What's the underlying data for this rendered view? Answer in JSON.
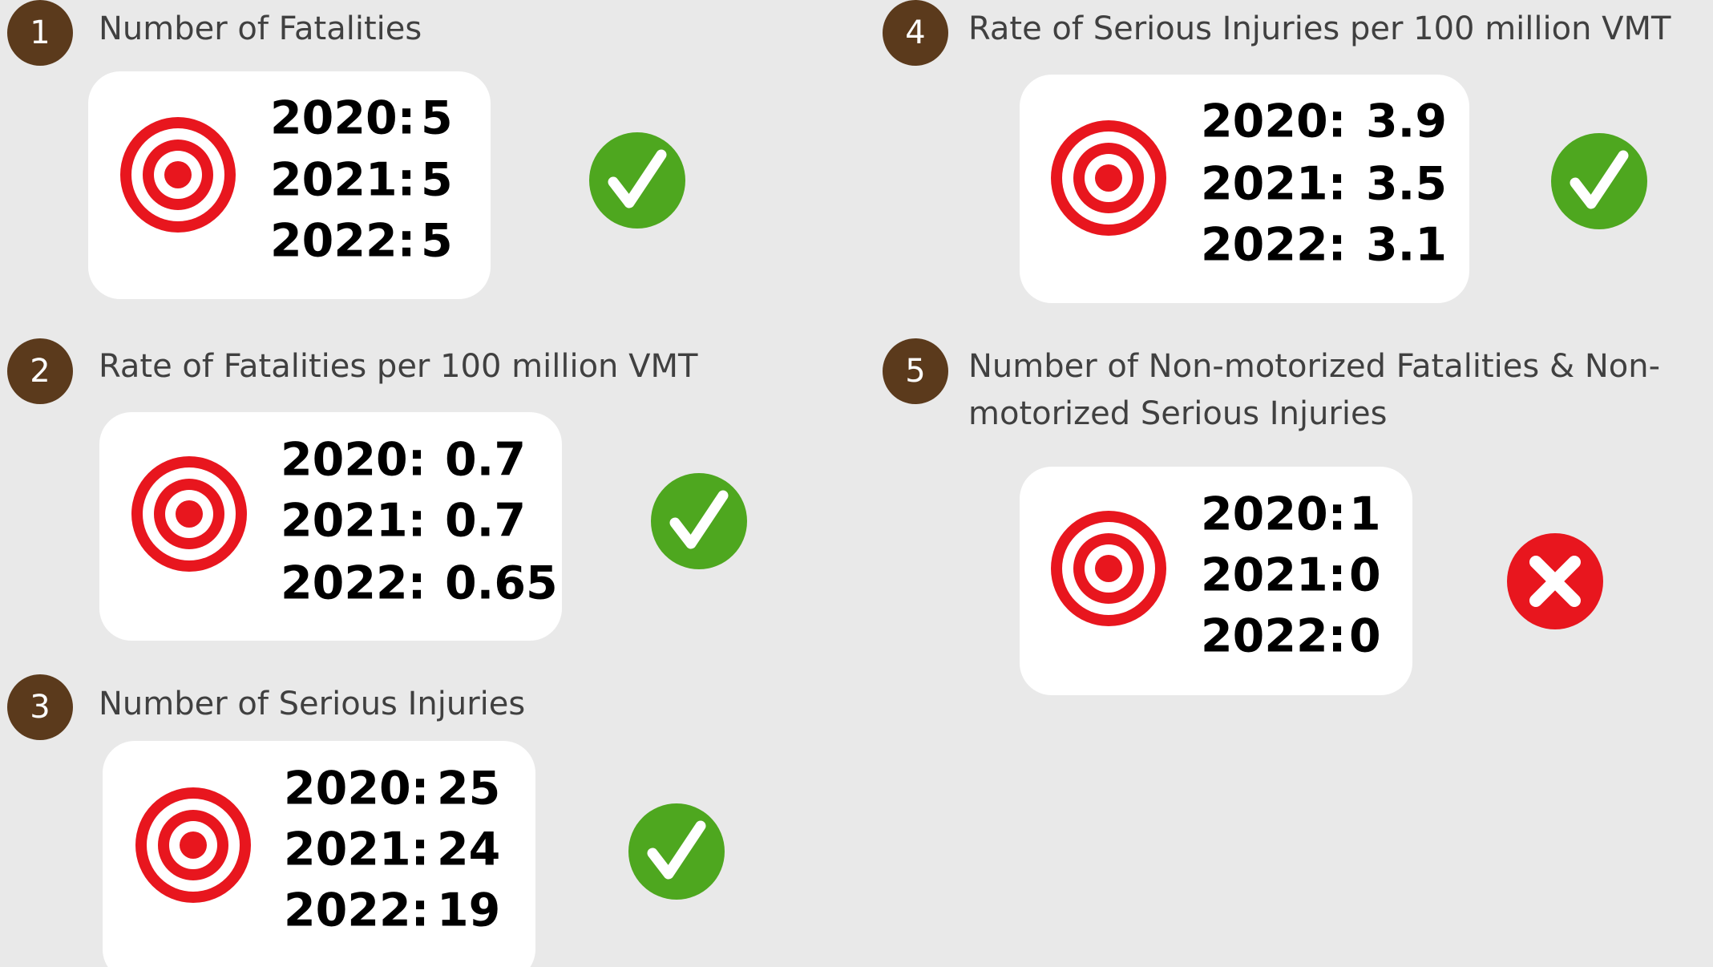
{
  "items": [
    {
      "number": 1,
      "title": [
        "Number of Fatalities"
      ],
      "rows": [
        {
          "year": "2020:",
          "value": 5
        },
        {
          "year": "2021:",
          "value": 5
        },
        {
          "year": "2022:",
          "value": 5
        }
      ]
    },
    {
      "number": 2,
      "title": [
        "Rate of Fatalities per 100 million VMT"
      ],
      "rows": [
        {
          "year": "2020:",
          "value": 0.7
        },
        {
          "year": "2021:",
          "value": 0.7
        },
        {
          "year": "2022:",
          "value": 0.65
        }
      ]
    },
    {
      "number": 3,
      "title": [
        "Number of Serious Injuries"
      ],
      "rows": [
        {
          "year": "2020:",
          "value": 25
        },
        {
          "year": "2021:",
          "value": 24
        },
        {
          "year": "2022:",
          "value": 19
        }
      ]
    },
    {
      "number": 4,
      "title": [
        "Rate of Serious Injuries per 100 million VMT"
      ],
      "rows": [
        {
          "year": "2020:",
          "value": 3.9
        },
        {
          "year": "2021:",
          "value": 3.5
        },
        {
          "year": "2022:",
          "value": 3.1
        }
      ]
    },
    {
      "number": 5,
      "title": [
        "Number of Non-motorized Fatalities & Non-",
        "motorized Serious Injuries"
      ],
      "rows": [
        {
          "year": "2020:",
          "value": 1
        },
        {
          "year": "2021:",
          "value": 0
        },
        {
          "year": "2022:",
          "value": 0
        }
      ]
    }
  ]
}
